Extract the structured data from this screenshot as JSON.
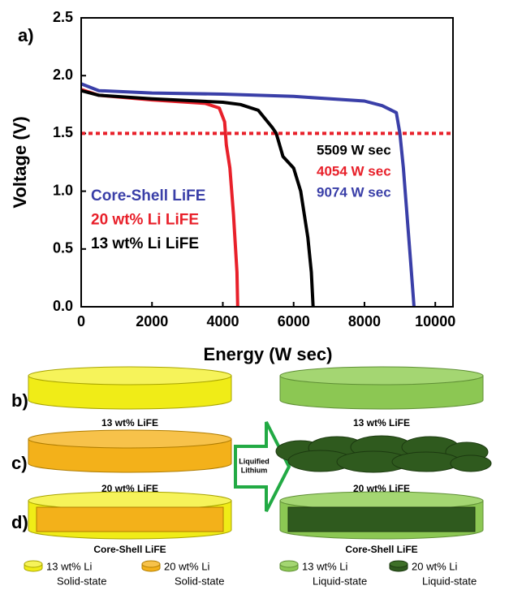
{
  "chart_data": {
    "type": "line",
    "panel_label": "a)",
    "x_label": "Energy (W sec)",
    "y_label": "Voltage (V)",
    "xlim": [
      0,
      10500
    ],
    "xticks": [
      0,
      2000,
      4000,
      6000,
      8000,
      10000
    ],
    "ylim": [
      0,
      2.5
    ],
    "yticks": [
      {
        "value": 0,
        "label": "0.0"
      },
      {
        "value": 0.5,
        "label": "0.5"
      },
      {
        "value": 1,
        "label": "1.0"
      },
      {
        "value": 1.5,
        "label": "1.5"
      },
      {
        "value": 2,
        "label": "2.0"
      },
      {
        "value": 2.5,
        "label": "2.5"
      }
    ],
    "series": [
      {
        "name": "Core-Shell LiFE",
        "color": "#3a3fa8",
        "x": [
          0,
          500,
          2000,
          4000,
          6000,
          8000,
          8500,
          8900,
          9000,
          9100,
          9200,
          9300,
          9400
        ],
        "values": [
          1.93,
          1.87,
          1.85,
          1.84,
          1.82,
          1.78,
          1.74,
          1.68,
          1.5,
          1.2,
          0.8,
          0.4,
          0
        ]
      },
      {
        "name": "20 wt% Li LiFE",
        "color": "#e8202a",
        "x": [
          0,
          500,
          2000,
          3500,
          3900,
          4050,
          4100,
          4200,
          4300,
          4400,
          4420
        ],
        "values": [
          1.88,
          1.83,
          1.79,
          1.76,
          1.72,
          1.6,
          1.4,
          1.2,
          0.8,
          0.3,
          0
        ]
      },
      {
        "name": "13 wt% Li LiFE",
        "color": "#000000",
        "x": [
          0,
          500,
          2000,
          4000,
          4500,
          5000,
          5400,
          5509,
          5700,
          6000,
          6200,
          6400,
          6500,
          6550
        ],
        "values": [
          1.87,
          1.83,
          1.8,
          1.77,
          1.75,
          1.7,
          1.55,
          1.5,
          1.3,
          1.2,
          1,
          0.6,
          0.3,
          0
        ]
      }
    ],
    "reference_line": {
      "value": 1.5,
      "color": "#e8202a"
    },
    "annotations": [
      {
        "text": "5509 W sec",
        "color": "#000000"
      },
      {
        "text": "4054 W sec",
        "color": "#e8202a"
      },
      {
        "text": "9074 W sec",
        "color": "#3a3fa8"
      }
    ]
  },
  "diagram": {
    "rows": [
      {
        "label": "b)",
        "left": "13 wt% LiFE",
        "right": "13 wt% LiFE"
      },
      {
        "label": "c)",
        "left": "20 wt% LiFE",
        "right": "20 wt% LiFE"
      },
      {
        "label": "d)",
        "left": "Core-Shell LiFE",
        "right": "Core-Shell LiFE"
      }
    ],
    "arrow_text": [
      "Liquified",
      "Lithium"
    ],
    "legend": [
      {
        "lines": [
          "13 wt% Li",
          "Solid-state"
        ]
      },
      {
        "lines": [
          "20 wt% Li",
          "Solid-state"
        ]
      },
      {
        "lines": [
          "13 wt% Li",
          "Liquid-state"
        ]
      },
      {
        "lines": [
          "20 wt% Li",
          "Liquid-state"
        ]
      }
    ]
  }
}
